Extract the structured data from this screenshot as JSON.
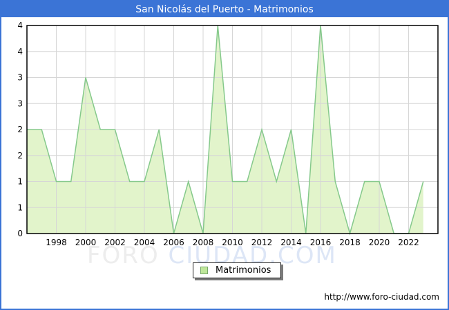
{
  "header": {
    "title": "San Nicolás del Puerto - Matrimonios"
  },
  "legend": {
    "label": "Matrimonios",
    "swatch_fill": "#bfe79b",
    "swatch_border": "#79a96a"
  },
  "watermark": {
    "part1": "FORO ",
    "part2": "CIUDAD.COM"
  },
  "footer": {
    "url": "http://www.foro-ciudad.com"
  },
  "colors": {
    "header_blue": "#3b74d6",
    "page_border": "#3b74d6",
    "area_fill": "#e2f4cb",
    "area_line": "#85c98b",
    "grid": "#d6d6d6",
    "frame": "#000000",
    "label_text": "#000000"
  },
  "chart_data": {
    "type": "area",
    "title": "San Nicolás del Puerto - Matrimonios",
    "series_name": "Matrimonios",
    "x": [
      1996,
      1997,
      1998,
      1999,
      2000,
      2001,
      2002,
      2003,
      2004,
      2005,
      2006,
      2007,
      2008,
      2009,
      2010,
      2011,
      2012,
      2013,
      2014,
      2015,
      2016,
      2017,
      2018,
      2019,
      2020,
      2021,
      2022,
      2023
    ],
    "values": [
      2,
      2,
      1,
      1,
      3,
      2,
      2,
      1,
      1,
      2,
      0,
      1,
      0,
      4,
      1,
      1,
      2,
      1,
      2,
      0,
      4,
      1,
      0,
      1,
      1,
      0,
      0,
      1
    ],
    "xlabel": "",
    "ylabel": "",
    "xlim": [
      1996,
      2024
    ],
    "ylim": [
      0,
      4
    ],
    "x_ticks": [
      1998,
      2000,
      2002,
      2004,
      2006,
      2008,
      2010,
      2012,
      2014,
      2016,
      2018,
      2020,
      2022
    ],
    "y_ticks": {
      "values": [
        4,
        3.5,
        3,
        2.5,
        2,
        1.5,
        1,
        0.5,
        0
      ],
      "labels": [
        "4",
        "4",
        "3",
        "3",
        "2",
        "2",
        "1",
        "1",
        "0"
      ]
    },
    "grid": true,
    "legend_position": "bottom-center"
  }
}
